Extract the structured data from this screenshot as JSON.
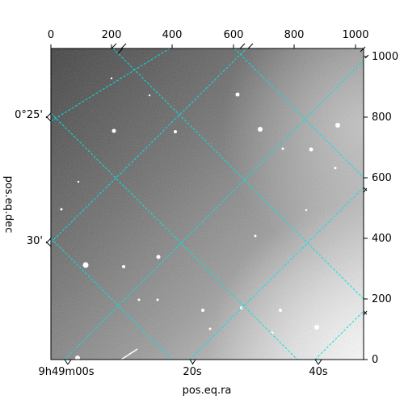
{
  "figure": {
    "top_axis_ticks": [
      "0",
      "200",
      "400",
      "600",
      "800",
      "1000"
    ],
    "right_axis_ticks": [
      "0",
      "200",
      "400",
      "600",
      "800",
      "1000"
    ],
    "left_axis_ticks": [
      "0°25'",
      "30'"
    ],
    "bottom_axis_ticks": [
      "9h49m00s",
      "20s",
      "40s"
    ],
    "xlabel": "pos.eq.ra",
    "ylabel": "pos.eq.dec",
    "grid_color": "#00e5e5",
    "image_colormap": "grayscale"
  }
}
